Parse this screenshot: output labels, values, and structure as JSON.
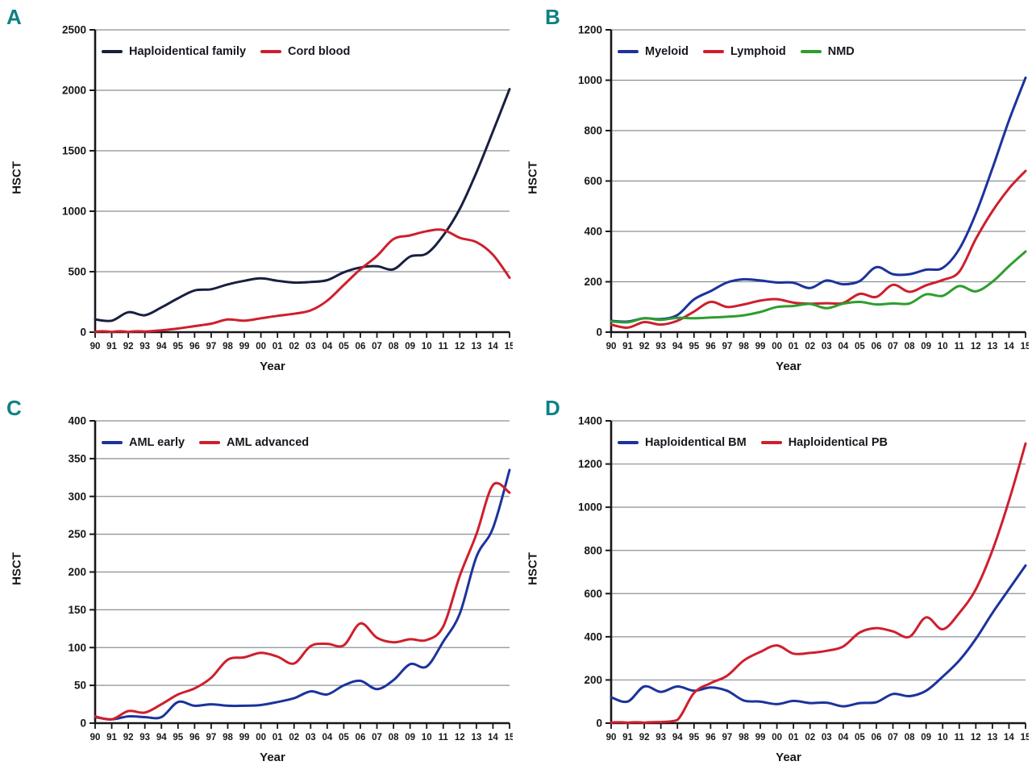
{
  "figure": {
    "x_axis_title": "Year",
    "y_axis_title": "HSCT",
    "panel_label_color": "#0e8182",
    "grid_color": "#8a9097",
    "axis_color": "#17171c"
  },
  "chart_data": [
    {
      "type": "line",
      "panel_label": "A",
      "xlabel": "Year",
      "ylabel": "HSCT",
      "ylim": [
        0,
        2500
      ],
      "yticks": [
        0,
        500,
        1000,
        1500,
        2000,
        2500
      ],
      "grid": "horizontal",
      "legend_position": "top-left-inside",
      "categories": [
        "90",
        "91",
        "92",
        "93",
        "94",
        "95",
        "96",
        "97",
        "98",
        "99",
        "00",
        "01",
        "02",
        "03",
        "04",
        "05",
        "06",
        "07",
        "08",
        "09",
        "10",
        "11",
        "12",
        "13",
        "14",
        "15"
      ],
      "series": [
        {
          "name": "Haploidentical family",
          "color": "#18203f",
          "values": [
            105,
            95,
            165,
            140,
            205,
            280,
            345,
            355,
            395,
            425,
            445,
            425,
            410,
            415,
            430,
            495,
            535,
            545,
            520,
            625,
            650,
            800,
            1020,
            1320,
            1660,
            2010
          ]
        },
        {
          "name": "Cord blood",
          "color": "#ce1f2d",
          "values": [
            2,
            2,
            2,
            5,
            15,
            30,
            50,
            70,
            105,
            95,
            115,
            135,
            152,
            180,
            260,
            390,
            520,
            630,
            770,
            800,
            835,
            845,
            780,
            745,
            640,
            450
          ]
        }
      ]
    },
    {
      "type": "line",
      "panel_label": "B",
      "xlabel": "Year",
      "ylabel": "HSCT",
      "ylim": [
        0,
        1200
      ],
      "yticks": [
        0,
        200,
        400,
        600,
        800,
        1000,
        1200
      ],
      "grid": "horizontal",
      "legend_position": "top-left-inside",
      "categories": [
        "90",
        "91",
        "92",
        "93",
        "94",
        "95",
        "96",
        "97",
        "98",
        "99",
        "00",
        "01",
        "02",
        "03",
        "04",
        "05",
        "06",
        "07",
        "08",
        "09",
        "10",
        "11",
        "12",
        "13",
        "14",
        "15"
      ],
      "series": [
        {
          "name": "Myeloid",
          "color": "#1c339c",
          "values": [
            45,
            42,
            55,
            52,
            68,
            130,
            163,
            197,
            210,
            205,
            197,
            196,
            175,
            205,
            190,
            203,
            258,
            230,
            230,
            248,
            255,
            330,
            470,
            650,
            840,
            1010
          ]
        },
        {
          "name": "Lymphoid",
          "color": "#ce1f2d",
          "values": [
            30,
            18,
            40,
            30,
            45,
            82,
            120,
            100,
            110,
            125,
            131,
            117,
            113,
            115,
            116,
            152,
            140,
            188,
            160,
            186,
            207,
            240,
            370,
            480,
            570,
            640
          ]
        },
        {
          "name": "NMD",
          "color": "#2d9e2d",
          "values": [
            43,
            39,
            55,
            49,
            57,
            55,
            58,
            61,
            67,
            80,
            100,
            104,
            112,
            95,
            113,
            120,
            110,
            114,
            114,
            150,
            144,
            183,
            162,
            200,
            262,
            320
          ]
        }
      ]
    },
    {
      "type": "line",
      "panel_label": "C",
      "xlabel": "Year",
      "ylabel": "HSCT",
      "ylim": [
        0,
        400
      ],
      "yticks": [
        0,
        50,
        100,
        150,
        200,
        250,
        300,
        350,
        400
      ],
      "grid": "horizontal",
      "legend_position": "top-left-inside",
      "categories": [
        "90",
        "91",
        "92",
        "93",
        "94",
        "95",
        "96",
        "97",
        "98",
        "99",
        "00",
        "01",
        "02",
        "03",
        "04",
        "05",
        "06",
        "07",
        "08",
        "09",
        "10",
        "11",
        "12",
        "13",
        "14",
        "15"
      ],
      "series": [
        {
          "name": "AML early",
          "color": "#1c339c",
          "values": [
            8,
            5,
            9,
            8,
            8,
            28,
            23,
            25,
            23,
            23,
            24,
            28,
            33,
            42,
            38,
            50,
            56,
            45,
            57,
            78,
            75,
            108,
            145,
            220,
            258,
            335
          ]
        },
        {
          "name": "AML advanced",
          "color": "#ce1f2d",
          "values": [
            9,
            5,
            16,
            14,
            25,
            38,
            46,
            60,
            84,
            87,
            93,
            88,
            79,
            102,
            105,
            103,
            132,
            113,
            107,
            111,
            110,
            128,
            195,
            250,
            315,
            305
          ]
        }
      ]
    },
    {
      "type": "line",
      "panel_label": "D",
      "xlabel": "Year",
      "ylabel": "HSCT",
      "ylim": [
        0,
        1400
      ],
      "yticks": [
        0,
        200,
        400,
        600,
        800,
        1000,
        1200,
        1400
      ],
      "grid": "horizontal",
      "legend_position": "top-left-inside",
      "categories": [
        "90",
        "91",
        "92",
        "93",
        "94",
        "95",
        "96",
        "97",
        "98",
        "99",
        "00",
        "01",
        "02",
        "03",
        "04",
        "05",
        "06",
        "07",
        "08",
        "09",
        "10",
        "11",
        "12",
        "13",
        "14",
        "15"
      ],
      "series": [
        {
          "name": "Haploidentical BM",
          "color": "#1c339c",
          "values": [
            120,
            100,
            170,
            145,
            170,
            150,
            165,
            150,
            105,
            100,
            88,
            103,
            93,
            95,
            78,
            93,
            97,
            135,
            125,
            150,
            215,
            290,
            390,
            510,
            620,
            730
          ]
        },
        {
          "name": "Haploidentical PB",
          "color": "#ce1f2d",
          "values": [
            2,
            2,
            2,
            5,
            15,
            140,
            185,
            220,
            290,
            330,
            360,
            322,
            325,
            335,
            355,
            420,
            440,
            425,
            400,
            490,
            435,
            510,
            620,
            800,
            1030,
            1295
          ]
        }
      ]
    }
  ]
}
